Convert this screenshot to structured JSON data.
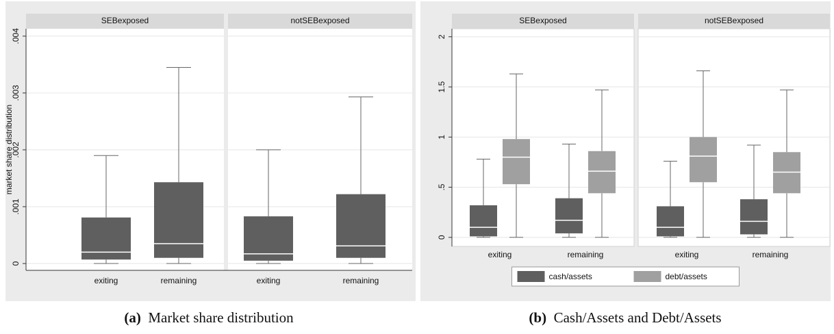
{
  "chart_data": [
    {
      "type": "box",
      "caption_label": "(a)",
      "caption": "Market share distribution",
      "ylabel": "market share distribution",
      "panels": [
        "SEBexposed",
        "notSEBexposed"
      ],
      "categories": [
        "exiting",
        "remaining"
      ],
      "ylim": [
        -0.00012,
        0.00413
      ],
      "yticks": [
        0,
        {
          "value": 0.001,
          "label": ".001"
        },
        {
          "value": 0.002,
          "label": ".002"
        },
        {
          "value": 0.003,
          "label": ".003"
        },
        {
          "value": 0.004,
          "label": ".004"
        }
      ],
      "grid": true,
      "series": [
        {
          "color": "#5f5f5f",
          "boxes": [
            [
              {
                "min": 0,
                "q1": 7e-05,
                "median": 0.0002,
                "q3": 0.00081,
                "max": 0.0019
              },
              {
                "min": 0,
                "q1": 0.0001,
                "median": 0.00035,
                "q3": 0.00143,
                "max": 0.00345
              }
            ],
            [
              {
                "min": 0,
                "q1": 5e-05,
                "median": 0.00017,
                "q3": 0.00083,
                "max": 0.002
              },
              {
                "min": 0,
                "q1": 0.0001,
                "median": 0.00031,
                "q3": 0.00122,
                "max": 0.00293
              }
            ]
          ]
        }
      ]
    },
    {
      "type": "box",
      "caption_label": "(b)",
      "caption": "Cash/Assets and Debt/Assets",
      "panels": [
        "SEBexposed",
        "notSEBexposed"
      ],
      "categories": [
        "exiting",
        "remaining"
      ],
      "ylim": [
        -0.09,
        2.08
      ],
      "yticks": [
        0,
        {
          "value": 0.5,
          "label": ".5"
        },
        1,
        1.5,
        2
      ],
      "grid": true,
      "legend": "bottom",
      "series": [
        {
          "name": "cash/assets",
          "color": "#5f5f5f",
          "boxes": [
            [
              {
                "min": 0,
                "q1": 0.01,
                "median": 0.1,
                "q3": 0.32,
                "max": 0.78
              },
              {
                "min": 0,
                "q1": 0.04,
                "median": 0.17,
                "q3": 0.39,
                "max": 0.93
              }
            ],
            [
              {
                "min": 0,
                "q1": 0.01,
                "median": 0.1,
                "q3": 0.31,
                "max": 0.76
              },
              {
                "min": 0,
                "q1": 0.03,
                "median": 0.16,
                "q3": 0.38,
                "max": 0.92
              }
            ]
          ]
        },
        {
          "name": "debt/assets",
          "color": "#a0a0a0",
          "boxes": [
            [
              {
                "min": 0,
                "q1": 0.53,
                "median": 0.8,
                "q3": 0.98,
                "max": 1.63
              },
              {
                "min": 0,
                "q1": 0.44,
                "median": 0.66,
                "q3": 0.86,
                "max": 1.47
              }
            ],
            [
              {
                "min": 0,
                "q1": 0.55,
                "median": 0.81,
                "q3": 1.0,
                "max": 1.66
              },
              {
                "min": 0,
                "q1": 0.44,
                "median": 0.65,
                "q3": 0.85,
                "max": 1.47
              }
            ]
          ]
        }
      ]
    }
  ]
}
